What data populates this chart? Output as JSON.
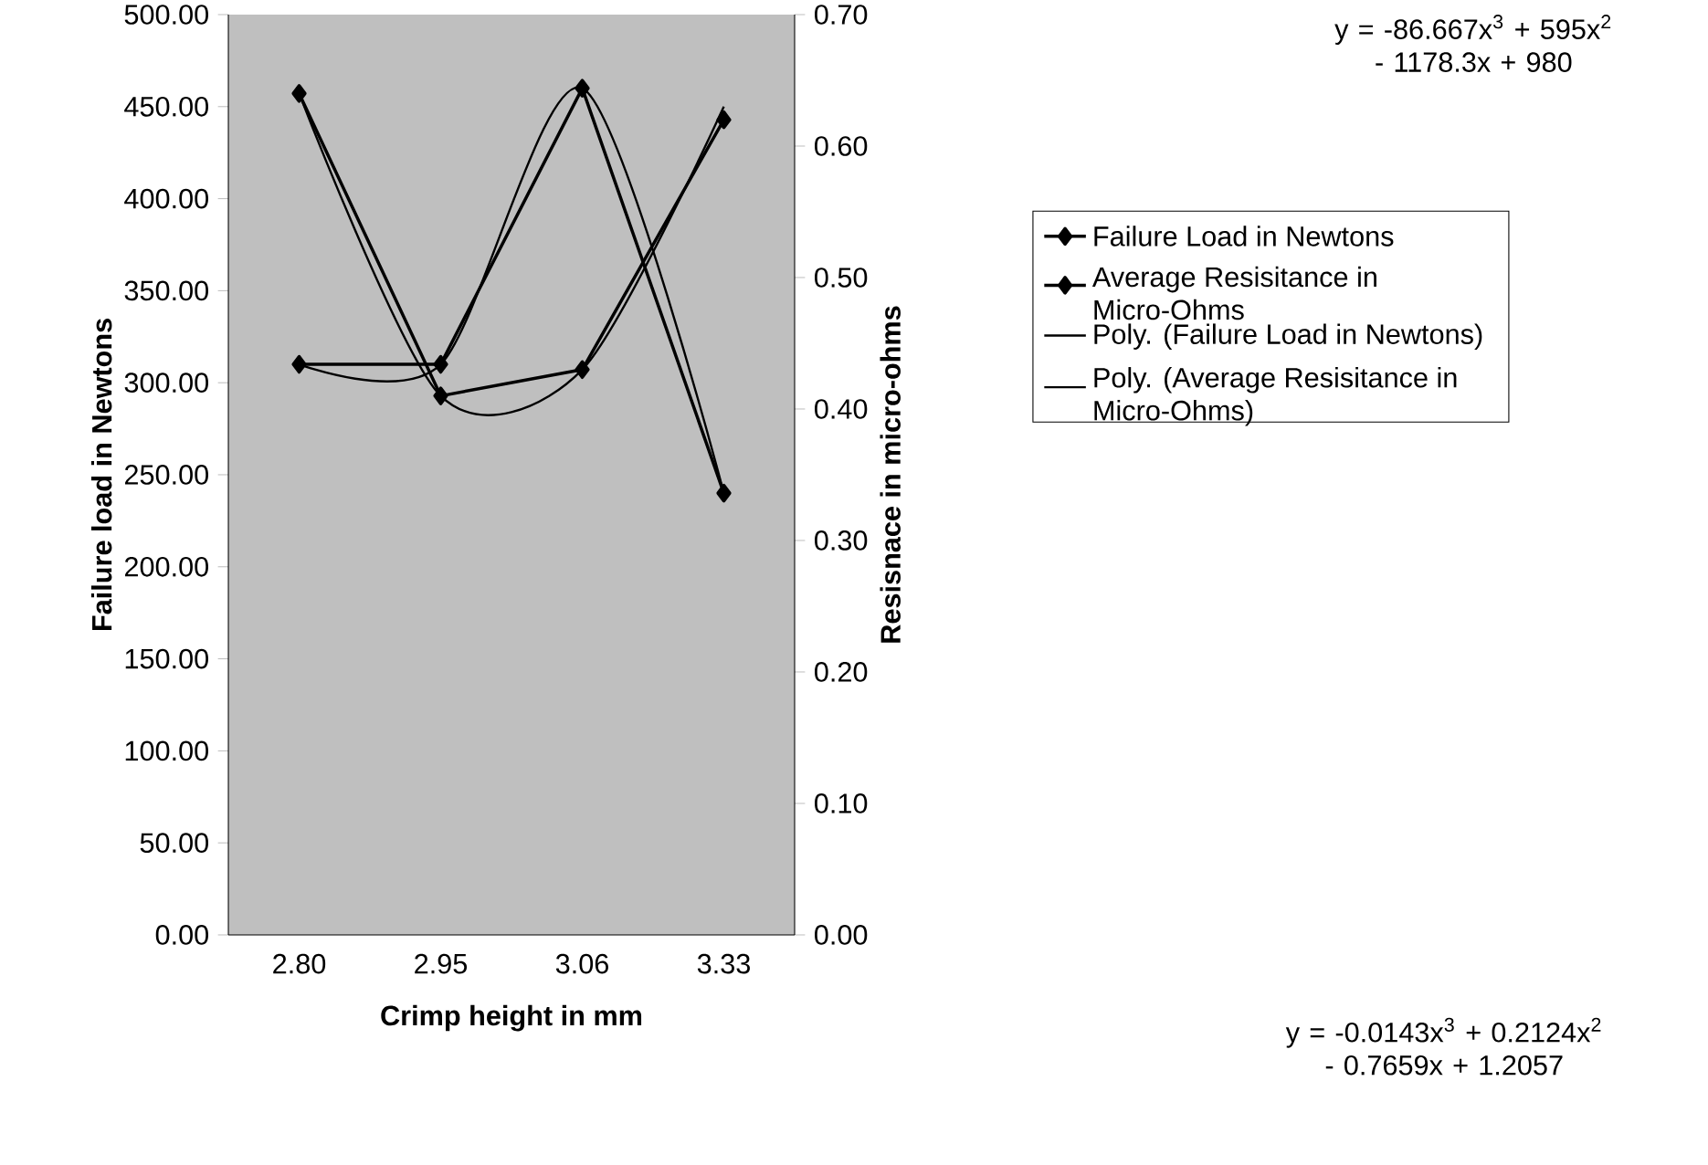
{
  "chart_data": {
    "type": "line",
    "xlabel": "Crimp height in mm",
    "ylabel": "Failure load in Newtons",
    "y2label": "Resisnace in micro-ohms",
    "categories": [
      "2.80",
      "2.95",
      "3.06",
      "3.33"
    ],
    "series": [
      {
        "name": "Failure Load in Newtons",
        "color": "#000000",
        "marker": "diamond",
        "values": [
          310,
          310,
          460,
          240
        ]
      },
      {
        "name": "Average Resisitance in Micro-Ohms",
        "color": "#000000",
        "marker": "diamond",
        "axis": "y2",
        "values": [
          0.64,
          0.41,
          0.43,
          0.62
        ]
      },
      {
        "name": "Poly. (Failure Load in Newtons)",
        "color": "#000000",
        "marker": "none",
        "values": [
          310,
          310,
          460,
          240
        ]
      },
      {
        "name": "Poly. (Average Resisitance in Micro-Ohms)",
        "color": "#000000",
        "marker": "none",
        "axis": "y2",
        "values": [
          0.64,
          0.41,
          0.43,
          0.63
        ]
      }
    ],
    "ylim": [
      0,
      500
    ],
    "yticks": [
      {
        "value": 0,
        "label": "0.00"
      },
      {
        "value": 50,
        "label": "50.00"
      },
      {
        "value": 100,
        "label": "100.00"
      },
      {
        "value": 150,
        "label": "150.00"
      },
      {
        "value": 200,
        "label": "200.00"
      },
      {
        "value": 250,
        "label": "250.00"
      },
      {
        "value": 300,
        "label": "300.00"
      },
      {
        "value": 350,
        "label": "350.00"
      },
      {
        "value": 400,
        "label": "400.00"
      },
      {
        "value": 450,
        "label": "450.00"
      },
      {
        "value": 500,
        "label": "500.00"
      }
    ],
    "y2lim": [
      0,
      0.7
    ],
    "y2ticks": [
      {
        "value": 0,
        "label": "0.00"
      },
      {
        "value": 0.1,
        "label": "0.10"
      },
      {
        "value": 0.2,
        "label": "0.20"
      },
      {
        "value": 0.3,
        "label": "0.30"
      },
      {
        "value": 0.4,
        "label": "0.40"
      },
      {
        "value": 0.5,
        "label": "0.50"
      },
      {
        "value": 0.6,
        "label": "0.60"
      },
      {
        "value": 0.7,
        "label": "0.70"
      }
    ],
    "legend": "right",
    "annotations": [
      "y = -86.667x$^{3}$ + 595x$^{2}$ - 1178.3x + 980",
      "y = -0.0143x$^{3}$ + 0.2124x$^{2}$ - 0.7659x + 1.2057"
    ]
  }
}
